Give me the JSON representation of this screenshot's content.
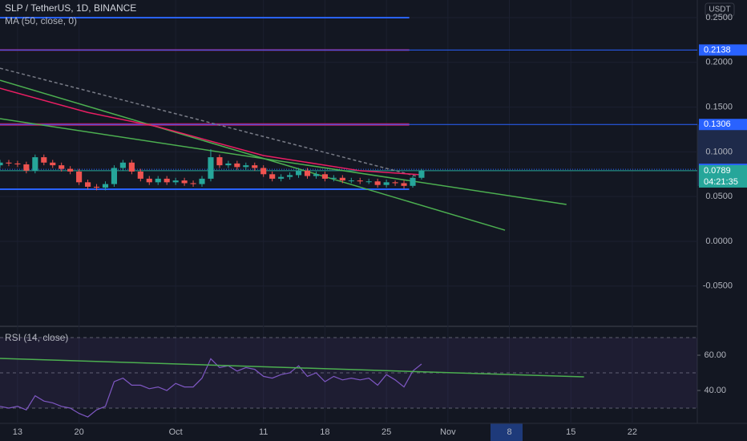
{
  "header": {
    "symbol": "SLP / TetherUS, 1D, BINANCE",
    "indicator": "MA (50, close, 0)",
    "currency": "USDT"
  },
  "chart_data": [
    {
      "type": "candlestick",
      "up_color": "#26a69a",
      "down_color": "#ef5350",
      "open": [
        0.085,
        0.088,
        0.087,
        0.086,
        0.079,
        0.094,
        0.088,
        0.085,
        0.081,
        0.078,
        0.066,
        0.061,
        0.06,
        0.064,
        0.082,
        0.088,
        0.078,
        0.07,
        0.066,
        0.07,
        0.066,
        0.068,
        0.065,
        0.064,
        0.07,
        0.094,
        0.085,
        0.087,
        0.083,
        0.085,
        0.082,
        0.075,
        0.07,
        0.072,
        0.074,
        0.079,
        0.073,
        0.075,
        0.07,
        0.071,
        0.068,
        0.068,
        0.067,
        0.067,
        0.063,
        0.066,
        0.065,
        0.062,
        0.071
      ],
      "high": [
        0.091,
        0.091,
        0.09,
        0.089,
        0.097,
        0.097,
        0.091,
        0.088,
        0.084,
        0.081,
        0.069,
        0.064,
        0.067,
        0.085,
        0.091,
        0.091,
        0.081,
        0.073,
        0.073,
        0.073,
        0.071,
        0.071,
        0.068,
        0.073,
        0.103,
        0.097,
        0.09,
        0.09,
        0.088,
        0.088,
        0.085,
        0.078,
        0.075,
        0.077,
        0.082,
        0.082,
        0.078,
        0.078,
        0.074,
        0.074,
        0.071,
        0.071,
        0.07,
        0.07,
        0.069,
        0.068,
        0.068,
        0.073,
        0.081
      ],
      "low": [
        0.082,
        0.084,
        0.083,
        0.076,
        0.076,
        0.085,
        0.082,
        0.078,
        0.075,
        0.063,
        0.058,
        0.057,
        0.057,
        0.061,
        0.079,
        0.075,
        0.067,
        0.063,
        0.063,
        0.063,
        0.063,
        0.062,
        0.061,
        0.061,
        0.067,
        0.082,
        0.082,
        0.08,
        0.08,
        0.079,
        0.072,
        0.067,
        0.067,
        0.069,
        0.071,
        0.07,
        0.07,
        0.067,
        0.067,
        0.065,
        0.065,
        0.064,
        0.064,
        0.06,
        0.06,
        0.062,
        0.059,
        0.06,
        0.069
      ],
      "close": [
        0.088,
        0.087,
        0.086,
        0.079,
        0.094,
        0.088,
        0.085,
        0.081,
        0.078,
        0.066,
        0.061,
        0.06,
        0.064,
        0.082,
        0.088,
        0.078,
        0.07,
        0.066,
        0.07,
        0.066,
        0.068,
        0.065,
        0.064,
        0.07,
        0.094,
        0.085,
        0.087,
        0.083,
        0.085,
        0.082,
        0.075,
        0.07,
        0.072,
        0.074,
        0.079,
        0.073,
        0.075,
        0.07,
        0.071,
        0.068,
        0.068,
        0.067,
        0.067,
        0.063,
        0.066,
        0.065,
        0.062,
        0.071,
        0.0789
      ],
      "ma": {
        "color": "#e91e63",
        "x": [
          0,
          10,
          18,
          30,
          41,
          48
        ],
        "values": [
          0.171,
          0.144,
          0.128,
          0.0959,
          0.0789,
          0.0744
        ]
      },
      "xlim": [
        0,
        79.4
      ],
      "ylim": [
        -0.0932,
        0.2697
      ],
      "xticks": [
        {
          "value": 2,
          "label": "13"
        },
        {
          "value": 9,
          "label": "20"
        },
        {
          "value": 20,
          "label": "Oct"
        },
        {
          "value": 30,
          "label": "11"
        },
        {
          "value": 37,
          "label": "18"
        },
        {
          "value": 44,
          "label": "25"
        },
        {
          "value": 51,
          "label": "Nov"
        },
        {
          "value": 58,
          "label": "8"
        },
        {
          "value": 65,
          "label": "15"
        },
        {
          "value": 72,
          "label": "22"
        }
      ],
      "yticks": [
        {
          "value": 0.25,
          "label": "0.2500"
        },
        {
          "value": 0.2,
          "label": "0.2000"
        },
        {
          "value": 0.15,
          "label": "0.1500"
        },
        {
          "value": 0.1,
          "label": "0.1000"
        },
        {
          "value": 0.05,
          "label": "0.0500"
        },
        {
          "value": 0,
          "label": "0.0000"
        },
        {
          "value": -0.05,
          "label": "-0.0500"
        }
      ],
      "hlines": [
        {
          "price": 0.25,
          "color": "#2962ff",
          "end": 46.6,
          "width": 2
        },
        {
          "price": 0.2138,
          "color": "#c2185b",
          "end": 46.6,
          "width": 2
        },
        {
          "price": 0.1306,
          "color": "#c2185b",
          "end": 46.6,
          "width": 3
        },
        {
          "price": 0.0582,
          "color": "#2962ff",
          "end": 46.6,
          "width": 2
        }
      ],
      "trendlines": [
        {
          "x": [
            0,
            64.5
          ],
          "y": [
            0.1371,
            0.0412
          ],
          "color": "#4caf50"
        },
        {
          "x": [
            0,
            57.5
          ],
          "y": [
            0.18,
            0.0125
          ],
          "color": "#4caf50"
        },
        {
          "x": [
            0,
            47.5
          ],
          "y": [
            0.1935,
            0.0726
          ],
          "color": "#787b86",
          "dash": true
        }
      ],
      "price_tags": [
        {
          "value": 0.2138,
          "color": "#2962ff"
        },
        {
          "value": 0.1306,
          "color": "#2962ff"
        },
        {
          "value": 0.0805,
          "color": "#2962ff",
          "dash": true
        },
        {
          "value": 0.0789,
          "color": "#26a69a",
          "countdown": "04:21:35"
        }
      ]
    },
    {
      "type": "line",
      "title": "RSI (14, close)",
      "color": "#7e57c2",
      "values": [
        31,
        30,
        31,
        29,
        37,
        34,
        33,
        31,
        30,
        27,
        25,
        29,
        31,
        45,
        47,
        43,
        43,
        41,
        42,
        40,
        44,
        42,
        42,
        47,
        58,
        53,
        54,
        51,
        53,
        52,
        48,
        47,
        49,
        50,
        54,
        48,
        50,
        45,
        48,
        46,
        47,
        46,
        47,
        43,
        49,
        46,
        42,
        51,
        55
      ],
      "ylim": [
        25,
        75
      ],
      "yticks": [
        {
          "value": 60,
          "label": "60.00"
        },
        {
          "value": 40,
          "label": "40.00"
        }
      ],
      "bands": [
        30,
        50,
        70
      ],
      "trendline": {
        "x": [
          0,
          66.5
        ],
        "y": [
          58.2,
          47.7
        ],
        "color": "#4caf50"
      }
    }
  ]
}
